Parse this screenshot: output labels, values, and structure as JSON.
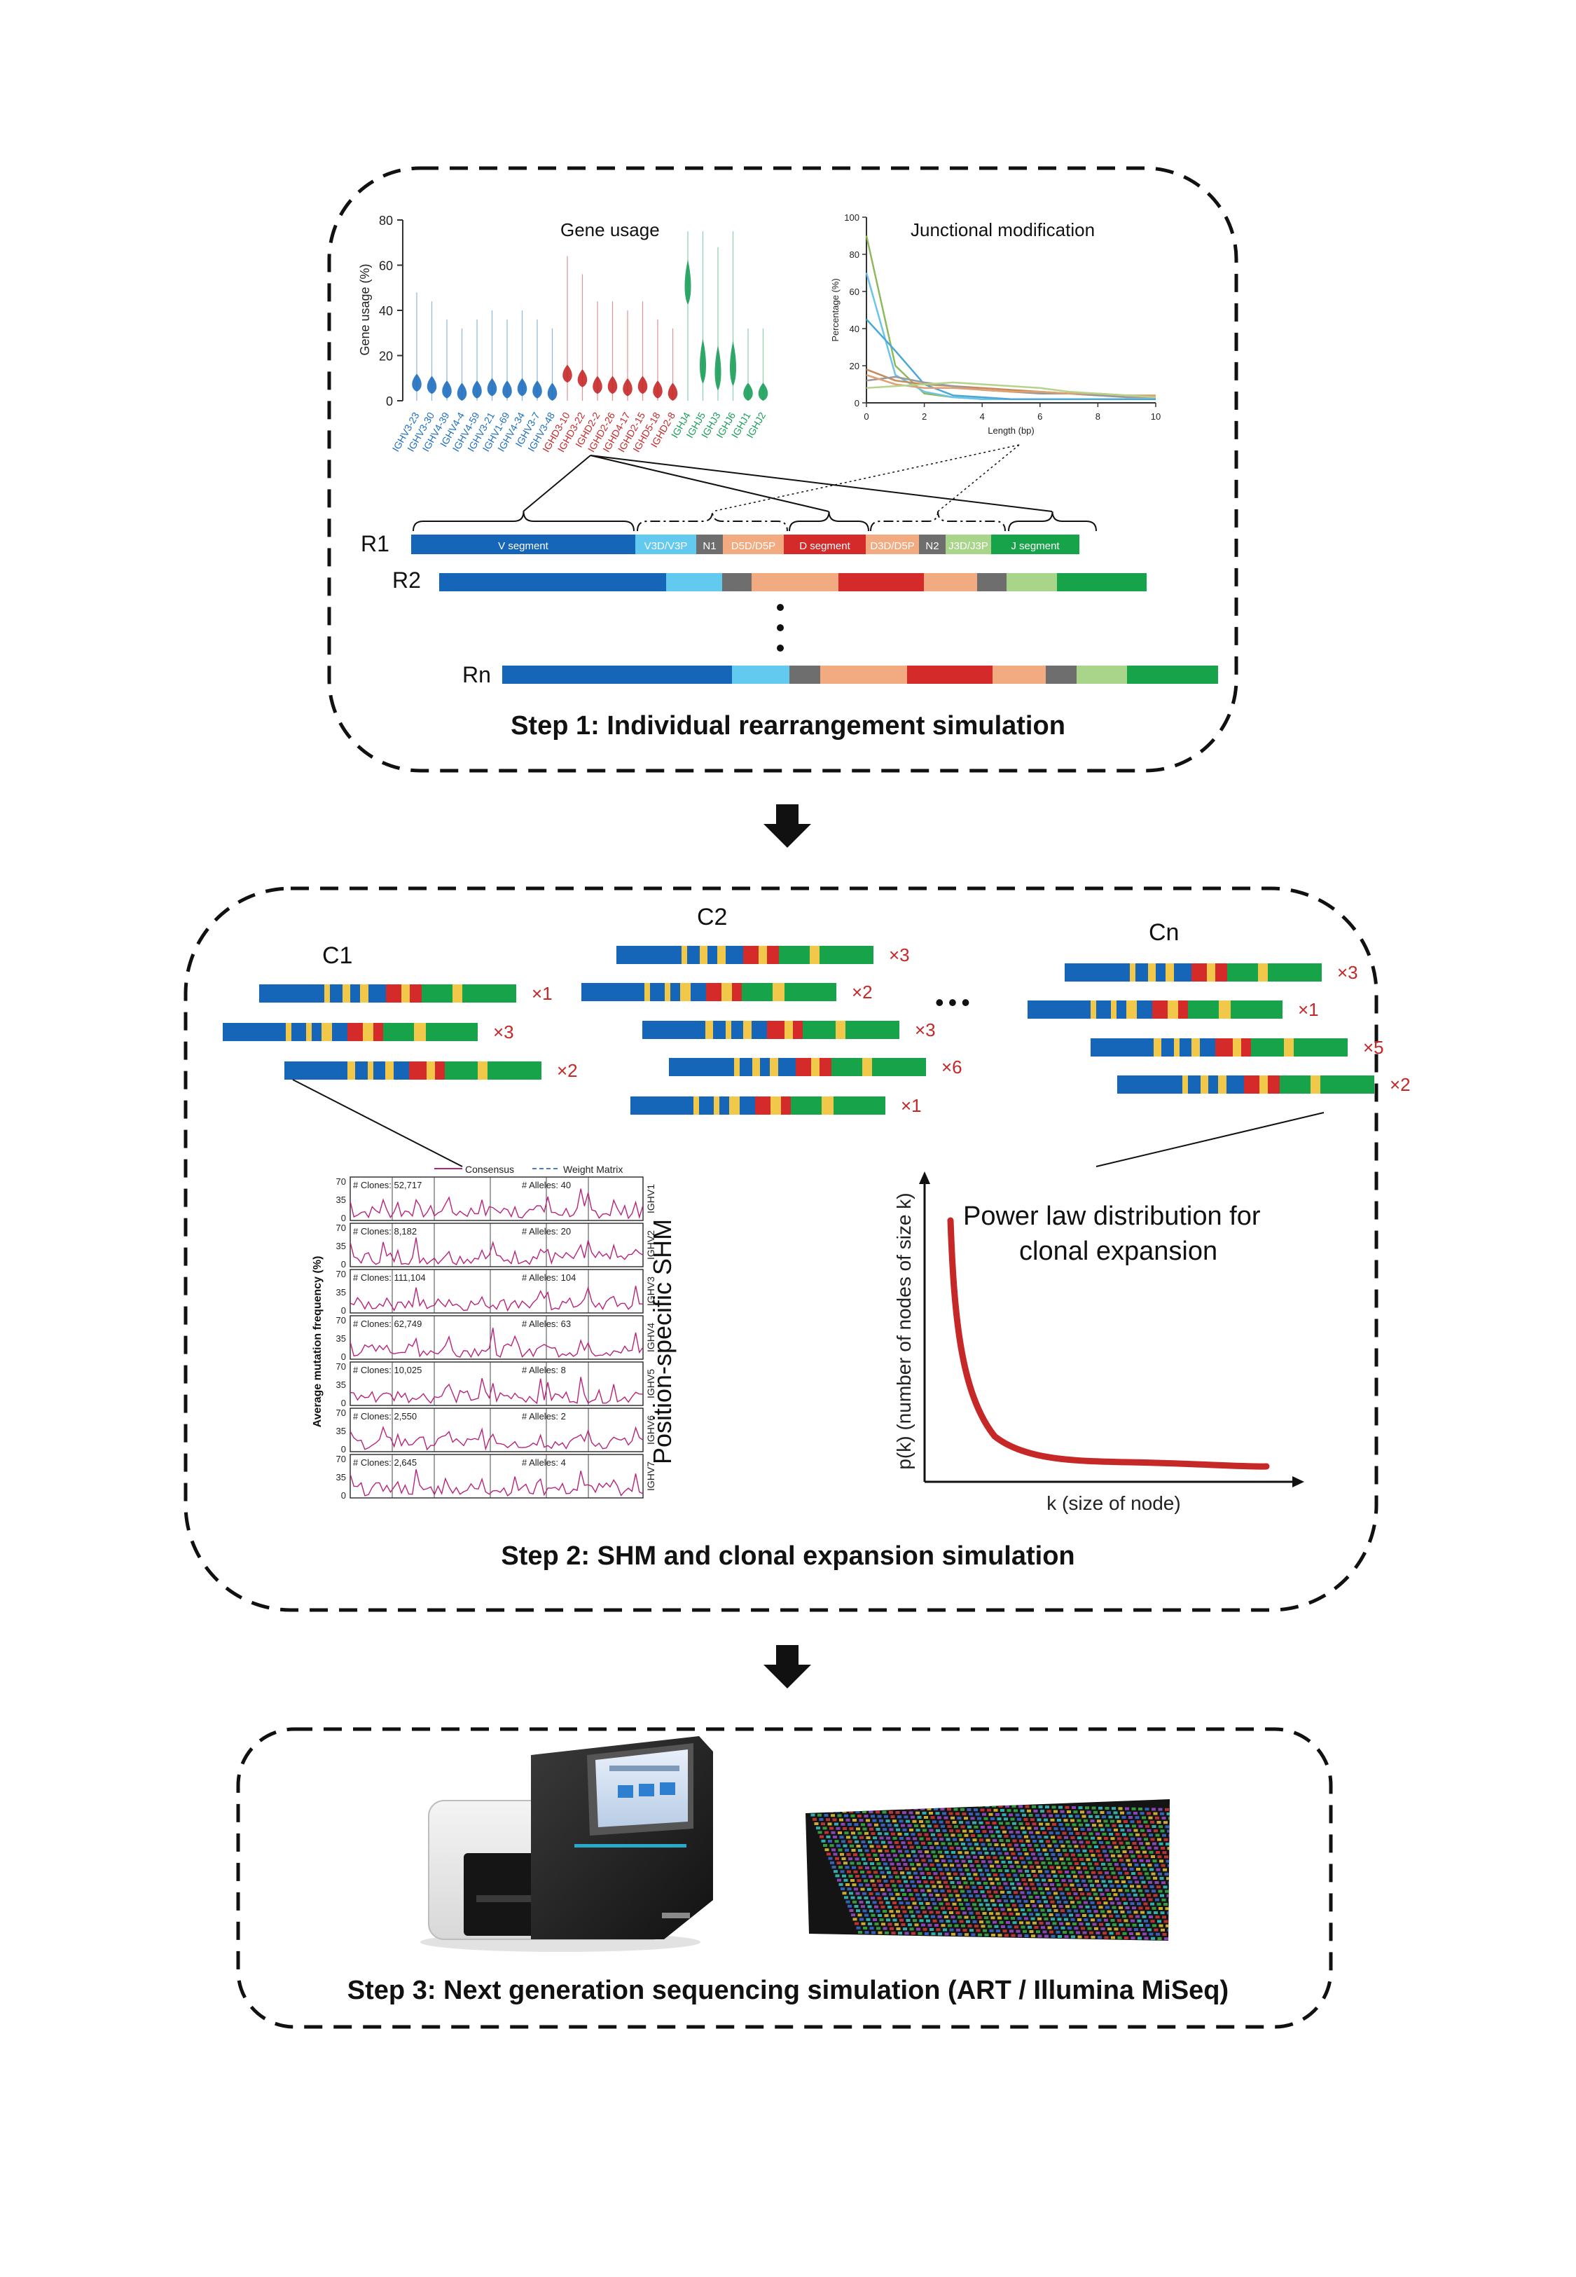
{
  "colors": {
    "V": "#1565b8",
    "V3D": "#62c9ef",
    "N1": "#6e6e6e",
    "D5D": "#f2aa80",
    "D": "#d42a2a",
    "D3D": "#f2aa80",
    "N2": "#6e6e6e",
    "J3D": "#a8d58a",
    "J": "#16a34a",
    "mutation": "#f2c84a",
    "multiplier": "#c62828",
    "violinV": "#1e6fbf",
    "violinD": "#c62828",
    "violinJ": "#1a9e5a",
    "consensus": "#b8247a",
    "powerlaw": "#c62828"
  },
  "step1": {
    "title": "Step 1: Individual rearrangement simulation",
    "gene_usage": {
      "title": "Gene usage",
      "ylabel": "Gene usage (%)",
      "yticks": [
        "80",
        "60",
        "40",
        "20",
        "0"
      ],
      "genes": [
        {
          "name": "IGHV3-23",
          "group": "V",
          "center": 7
        },
        {
          "name": "IGHV3-30",
          "group": "V",
          "center": 6
        },
        {
          "name": "IGHV4-39",
          "group": "V",
          "center": 4
        },
        {
          "name": "IGHV4-4",
          "group": "V",
          "center": 3
        },
        {
          "name": "IGHV4-59",
          "group": "V",
          "center": 4
        },
        {
          "name": "IGHV3-21",
          "group": "V",
          "center": 5
        },
        {
          "name": "IGHV1-69",
          "group": "V",
          "center": 4
        },
        {
          "name": "IGHV4-34",
          "group": "V",
          "center": 5
        },
        {
          "name": "IGHV3-7",
          "group": "V",
          "center": 4
        },
        {
          "name": "IGHV3-48",
          "group": "V",
          "center": 3
        },
        {
          "name": "IGHD3-10",
          "group": "D",
          "center": 11
        },
        {
          "name": "IGHD3-22",
          "group": "D",
          "center": 9
        },
        {
          "name": "IGHD2-2",
          "group": "D",
          "center": 6
        },
        {
          "name": "IGHD2-26",
          "group": "D",
          "center": 6
        },
        {
          "name": "IGHD4-17",
          "group": "D",
          "center": 5
        },
        {
          "name": "IGHD2-15",
          "group": "D",
          "center": 6
        },
        {
          "name": "IGHD5-18",
          "group": "D",
          "center": 4
        },
        {
          "name": "IGHD2-8",
          "group": "D",
          "center": 3
        },
        {
          "name": "IGHJ4",
          "group": "J",
          "center": 50
        },
        {
          "name": "IGHJ5",
          "group": "J",
          "center": 15
        },
        {
          "name": "IGHJ3",
          "group": "J",
          "center": 12
        },
        {
          "name": "IGHJ6",
          "group": "J",
          "center": 14
        },
        {
          "name": "IGHJ1",
          "group": "J",
          "center": 3
        },
        {
          "name": "IGHJ2",
          "group": "J",
          "center": 3
        }
      ]
    },
    "junctional": {
      "title": "Junctional modification",
      "ylabel": "Percentage (%)",
      "xlabel": "Length (bp)",
      "yticks": [
        "100",
        "80",
        "60",
        "40",
        "20",
        "0"
      ],
      "xticks": [
        "0",
        "2",
        "4",
        "6",
        "8",
        "10"
      ],
      "series": [
        {
          "color": "#8fb95a",
          "values": [
            90,
            20,
            5,
            3,
            2,
            2,
            2,
            2,
            2,
            2,
            2
          ]
        },
        {
          "color": "#6cc4e8",
          "values": [
            70,
            15,
            6,
            3,
            2,
            2,
            2,
            2,
            2,
            2,
            2
          ]
        },
        {
          "color": "#4aa8d8",
          "values": [
            45,
            28,
            10,
            4,
            3,
            2,
            2,
            2,
            2,
            2,
            2
          ]
        },
        {
          "color": "#c98a5a",
          "values": [
            18,
            12,
            10,
            9,
            8,
            7,
            6,
            5,
            4,
            4,
            3
          ]
        },
        {
          "color": "#9a9a9a",
          "values": [
            12,
            14,
            11,
            9,
            7,
            6,
            5,
            5,
            4,
            3,
            3
          ]
        },
        {
          "color": "#e0a070",
          "values": [
            15,
            10,
            8,
            8,
            7,
            6,
            6,
            5,
            5,
            4,
            4
          ]
        },
        {
          "color": "#b5d38a",
          "values": [
            8,
            9,
            10,
            11,
            10,
            9,
            8,
            6,
            5,
            4,
            3
          ]
        }
      ]
    },
    "segments": [
      {
        "key": "V",
        "label": "V segment"
      },
      {
        "key": "V3D",
        "label": "V3D/V3P"
      },
      {
        "key": "N1",
        "label": "N1"
      },
      {
        "key": "D5D",
        "label": "D5D/D5P"
      },
      {
        "key": "D",
        "label": "D segment"
      },
      {
        "key": "D3D",
        "label": "D3D/D5P"
      },
      {
        "key": "N2",
        "label": "N2"
      },
      {
        "key": "J3D",
        "label": "J3D/J3P"
      },
      {
        "key": "J",
        "label": "J segment"
      }
    ],
    "rows": [
      {
        "label": "R1"
      },
      {
        "label": "R2"
      },
      {
        "label": "Rn"
      }
    ]
  },
  "step2": {
    "title": "Step 2: SHM and clonal expansion simulation",
    "clones": [
      {
        "label": "C1",
        "multipliers": [
          "×1",
          "×3",
          "×2"
        ]
      },
      {
        "label": "C2",
        "multipliers": [
          "×3",
          "×2",
          "×3",
          "×6",
          "×1"
        ]
      },
      {
        "label": "Cn",
        "multipliers": [
          "×3",
          "×1",
          "×5",
          "×2"
        ]
      }
    ],
    "ellipsis": "•••",
    "shm": {
      "legend_consensus": "Consensus",
      "legend_weight": "Weight Matrix",
      "ylabel": "Average mutation frequency (%)",
      "side_title": "Position-specific SHM",
      "yticks": [
        "70",
        "35",
        "0"
      ],
      "panels": [
        {
          "clones": "# Clones: 52,717",
          "alleles": "# Alleles: 40",
          "gene": "IGHV1"
        },
        {
          "clones": "# Clones: 8,182",
          "alleles": "# Alleles: 20",
          "gene": "IGHV2"
        },
        {
          "clones": "# Clones: 111,104",
          "alleles": "# Alleles: 104",
          "gene": "IGHV3"
        },
        {
          "clones": "# Clones: 62,749",
          "alleles": "# Alleles: 63",
          "gene": "IGHV4"
        },
        {
          "clones": "# Clones: 10,025",
          "alleles": "# Alleles: 8",
          "gene": "IGHV5"
        },
        {
          "clones": "# Clones: 2,550",
          "alleles": "# Alleles: 2",
          "gene": "IGHV6"
        },
        {
          "clones": "# Clones: 2,645",
          "alleles": "# Alleles: 4",
          "gene": "IGHV7"
        }
      ]
    },
    "powerlaw": {
      "title_line1": "Power law distribution for",
      "title_line2": "clonal expansion",
      "xlabel": "k (size of node)",
      "ylabel": "p(k) (number of nodes of size k)"
    }
  },
  "step3": {
    "title": "Step 3: Next generation sequencing simulation (ART / Illumina MiSeq)"
  }
}
